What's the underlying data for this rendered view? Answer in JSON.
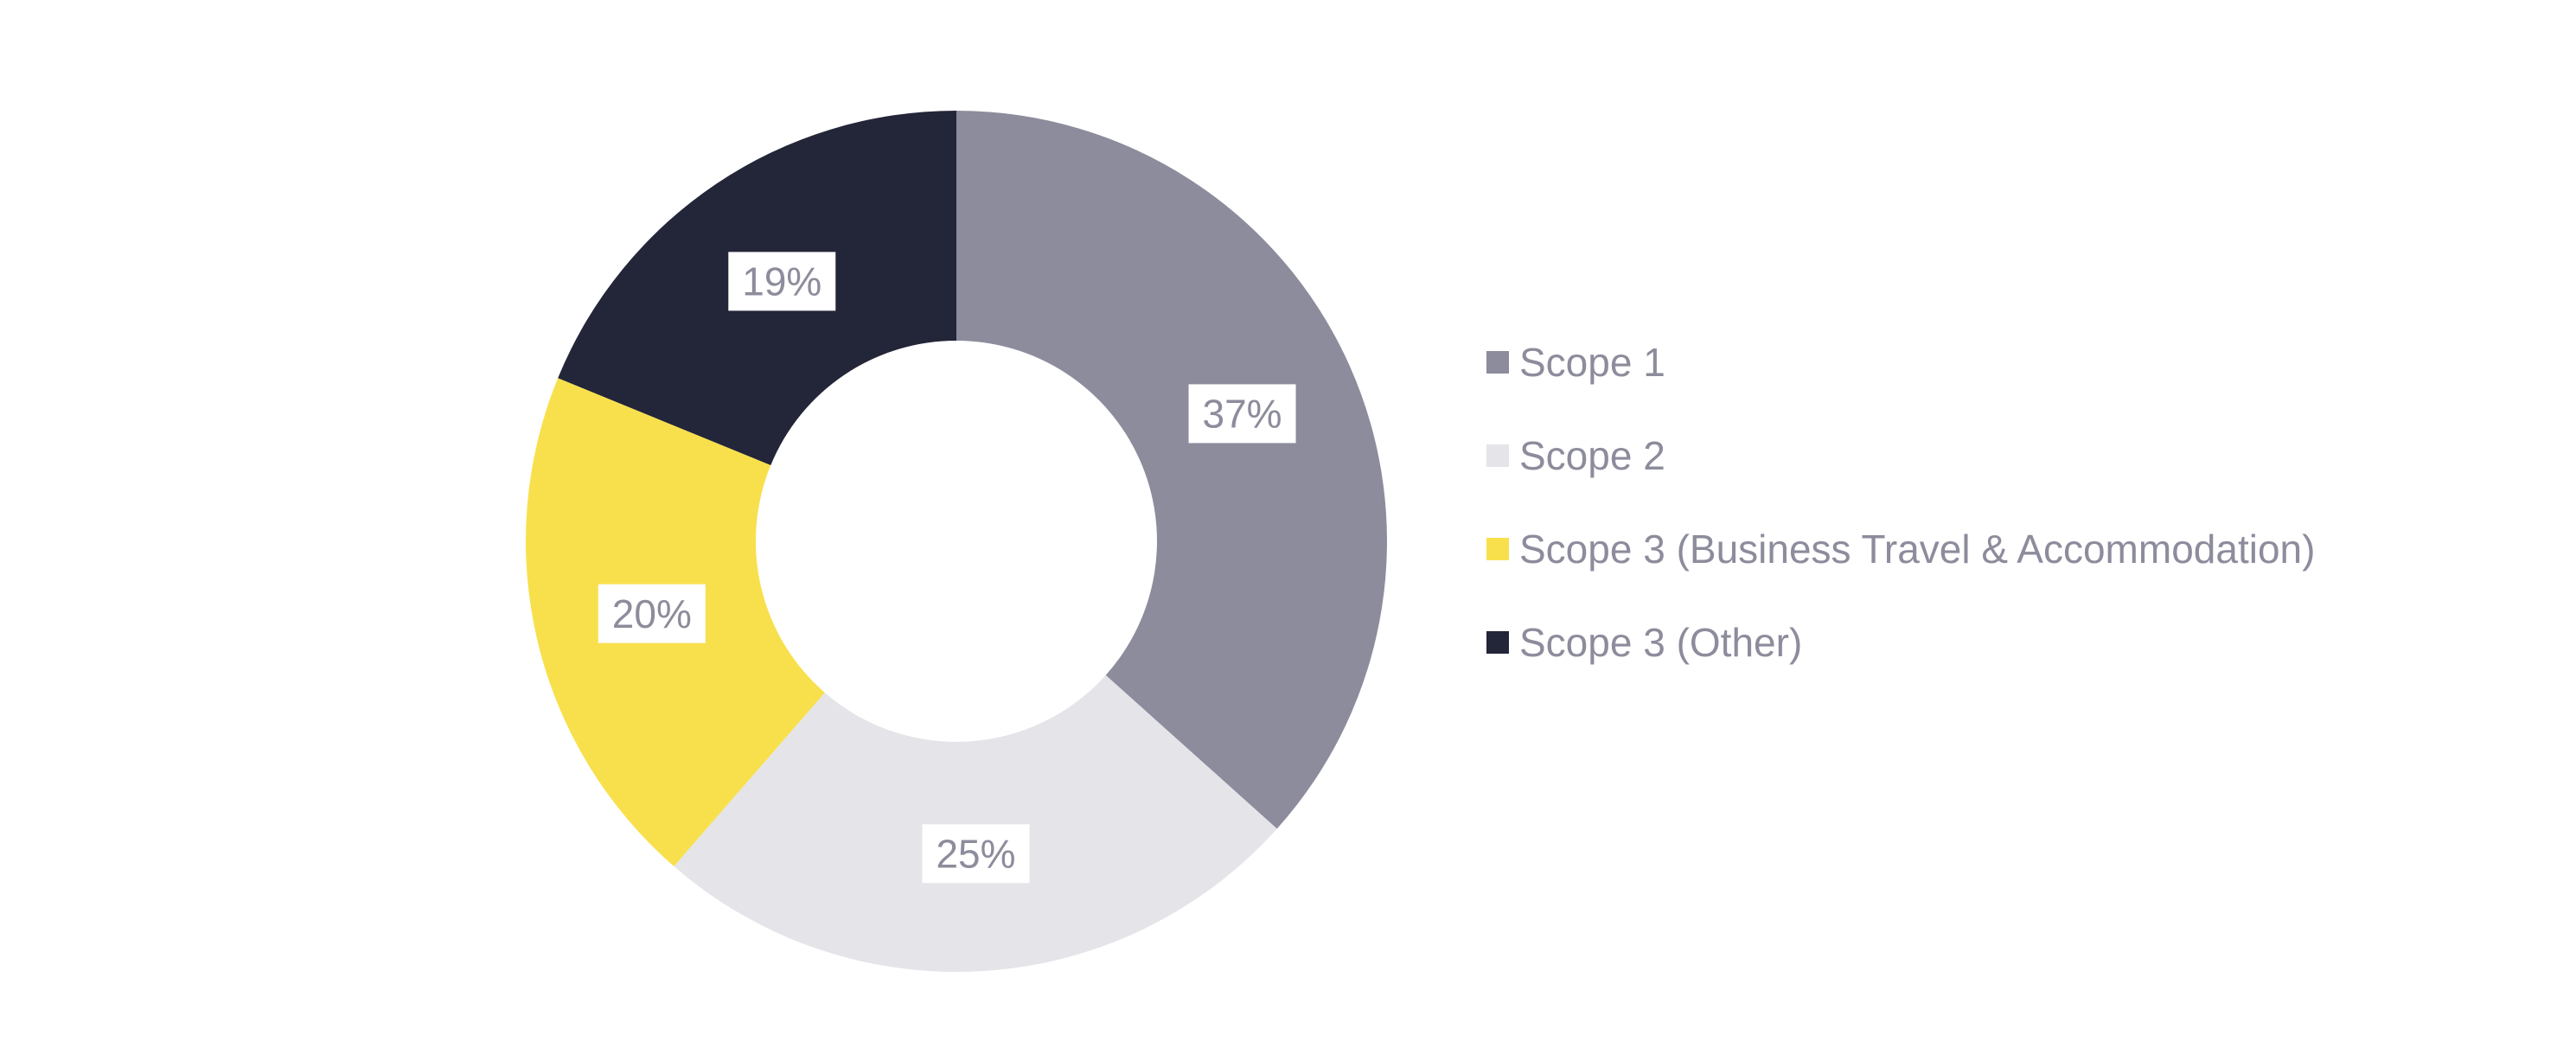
{
  "page": {
    "background_color": "#FFFFFF"
  },
  "chart_data": {
    "type": "pie",
    "subtype": "donut",
    "title": "",
    "legend_position": "right",
    "slices": [
      {
        "label": "Scope 1",
        "value": 37,
        "display": "37%",
        "color": "#8C8C9C"
      },
      {
        "label": "Scope 2",
        "value": 25,
        "display": "25%",
        "color": "#E4E4E9"
      },
      {
        "label": "Scope 3 (Business Travel & Accommodation)",
        "value": 20,
        "display": "20%",
        "color": "#F8E04D"
      },
      {
        "label": "Scope 3 (Other)",
        "value": 19,
        "display": "19%",
        "color": "#232539"
      }
    ],
    "slice_label_text_color": "#8C8C9C",
    "slice_label_box_color": "#FFFFFF",
    "legend_text_color": "#8C8C9C"
  }
}
